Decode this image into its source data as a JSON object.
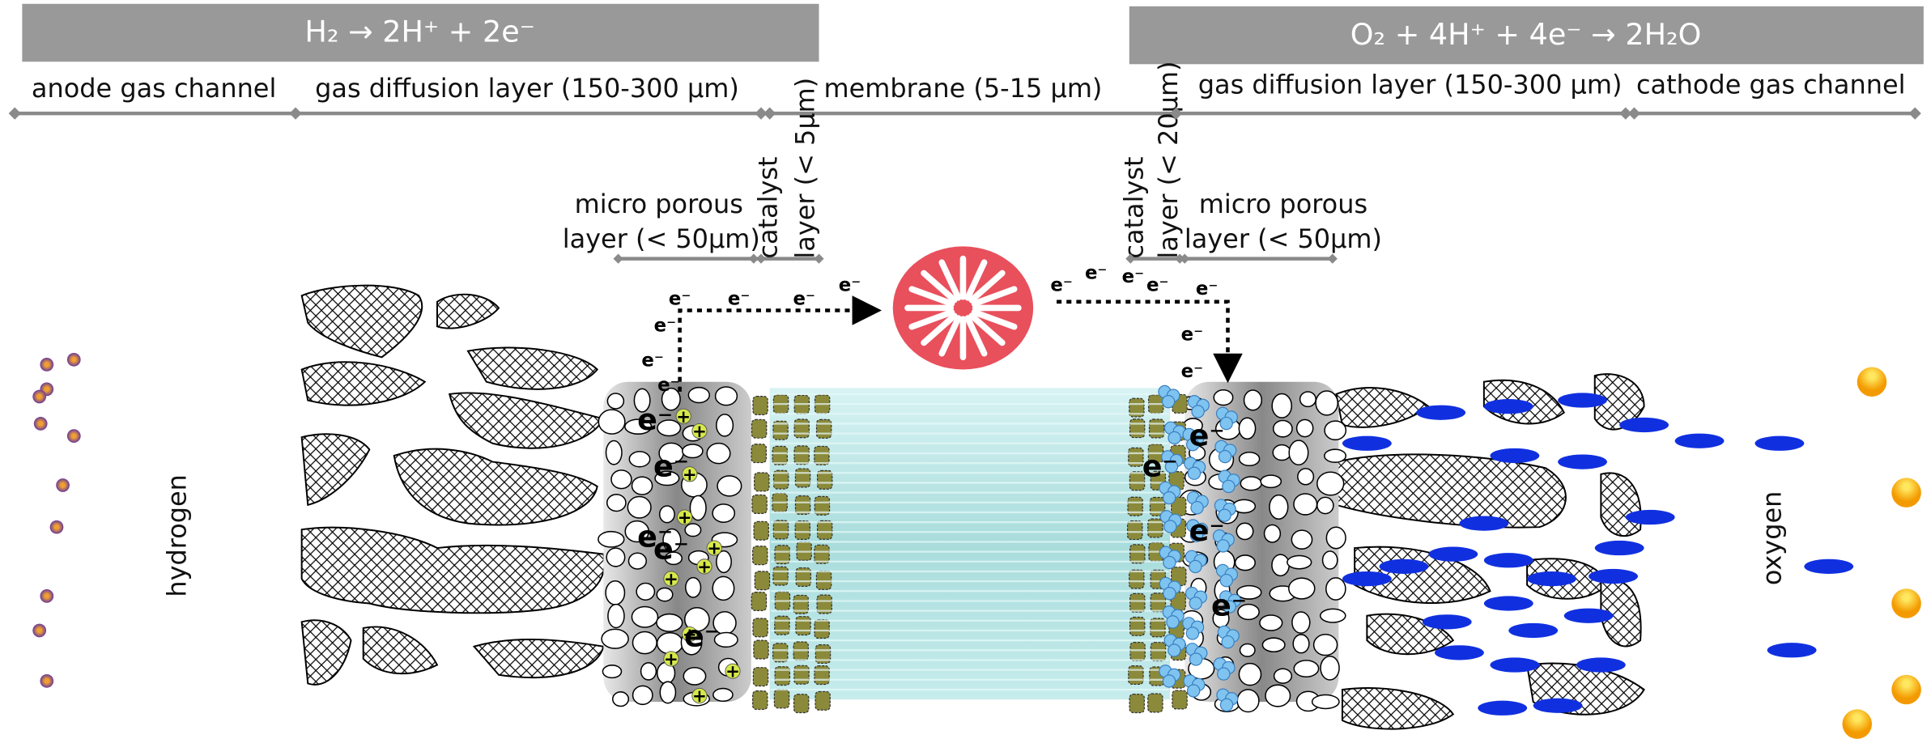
{
  "header": {
    "anode_reaction": "H₂ → 2H⁺ + 2e⁻",
    "cathode_reaction": "O₂ + 4H⁺ + 4e⁻ → 2H₂O"
  },
  "layers": {
    "anode_gas_channel": "anode gas channel",
    "anode_gdl": "gas diffusion layer (150-300 µm)",
    "membrane": "membrane (5-15 µm)",
    "cathode_gdl": "gas diffusion layer (150-300 µm)",
    "cathode_gas_channel": "cathode gas channel",
    "anode_catalyst": [
      "catalyst",
      "layer (< 5µm)"
    ],
    "cathode_catalyst": [
      "catalyst",
      "layer (< 20µm)"
    ],
    "anode_mpl": [
      "micro porous",
      "layer (< 50µm)"
    ],
    "cathode_mpl": [
      "micro porous",
      "layer (< 50µm)"
    ]
  },
  "gases": {
    "anode": "hydrogen",
    "cathode": "oxygen"
  },
  "symbols": {
    "electron": "e⁻",
    "proton": "+"
  }
}
